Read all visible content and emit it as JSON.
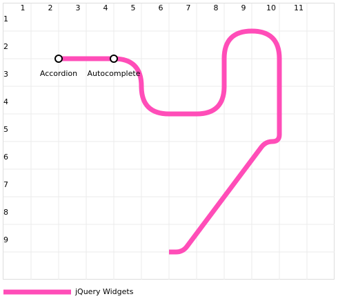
{
  "columns": [
    "1",
    "2",
    "3",
    "4",
    "5",
    "6",
    "7",
    "8",
    "9",
    "10",
    "11"
  ],
  "rows": [
    "1",
    "2",
    "3",
    "4",
    "5",
    "6",
    "7",
    "8",
    "9"
  ],
  "line": {
    "name": "jQuery Widgets",
    "color": "#ff4db8",
    "route": [
      [
        2,
        2
      ],
      [
        5,
        2
      ],
      [
        5,
        4
      ],
      [
        8,
        4
      ],
      [
        8,
        1
      ],
      [
        10,
        1
      ],
      [
        10,
        5
      ],
      [
        9.5,
        5
      ],
      [
        6.5,
        9
      ],
      [
        6,
        9
      ]
    ]
  },
  "stations": [
    {
      "label": "Accordion",
      "x": 2,
      "y": 2
    },
    {
      "label": "Autocomplete",
      "x": 4,
      "y": 2
    }
  ]
}
